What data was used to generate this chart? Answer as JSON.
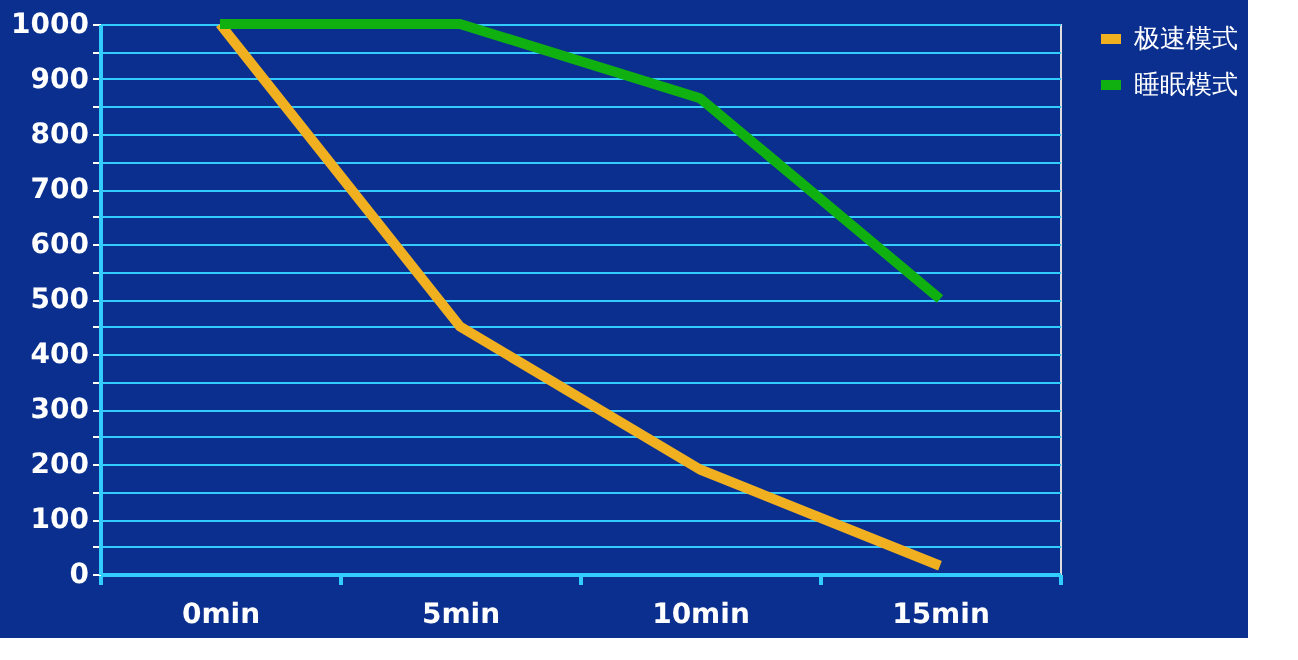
{
  "chart_data": {
    "type": "line",
    "categories": [
      "0min",
      "5min",
      "10min",
      "15min"
    ],
    "series": [
      {
        "name": "极速模式",
        "color": "#f0b020",
        "values": [
          1000,
          450,
          190,
          15
        ]
      },
      {
        "name": "睡眠模式",
        "color": "#10b010",
        "values": [
          1000,
          1000,
          865,
          500
        ]
      }
    ],
    "ylim": [
      0,
      1000
    ],
    "yticks": [
      0,
      {
        "value": 50,
        "label": null
      },
      100,
      {
        "value": 150,
        "label": null
      },
      200,
      {
        "value": 250,
        "label": null
      },
      300,
      {
        "value": 350,
        "label": null
      },
      400,
      {
        "value": 450,
        "label": null
      },
      500,
      {
        "value": 550,
        "label": null
      },
      600,
      {
        "value": 650,
        "label": null
      },
      700,
      {
        "value": 750,
        "label": null
      },
      800,
      {
        "value": 850,
        "label": null
      },
      900,
      {
        "value": 950,
        "label": null
      },
      1000
    ],
    "grid": "y",
    "legend": "right",
    "marker": "none",
    "line_style": "solid"
  }
}
